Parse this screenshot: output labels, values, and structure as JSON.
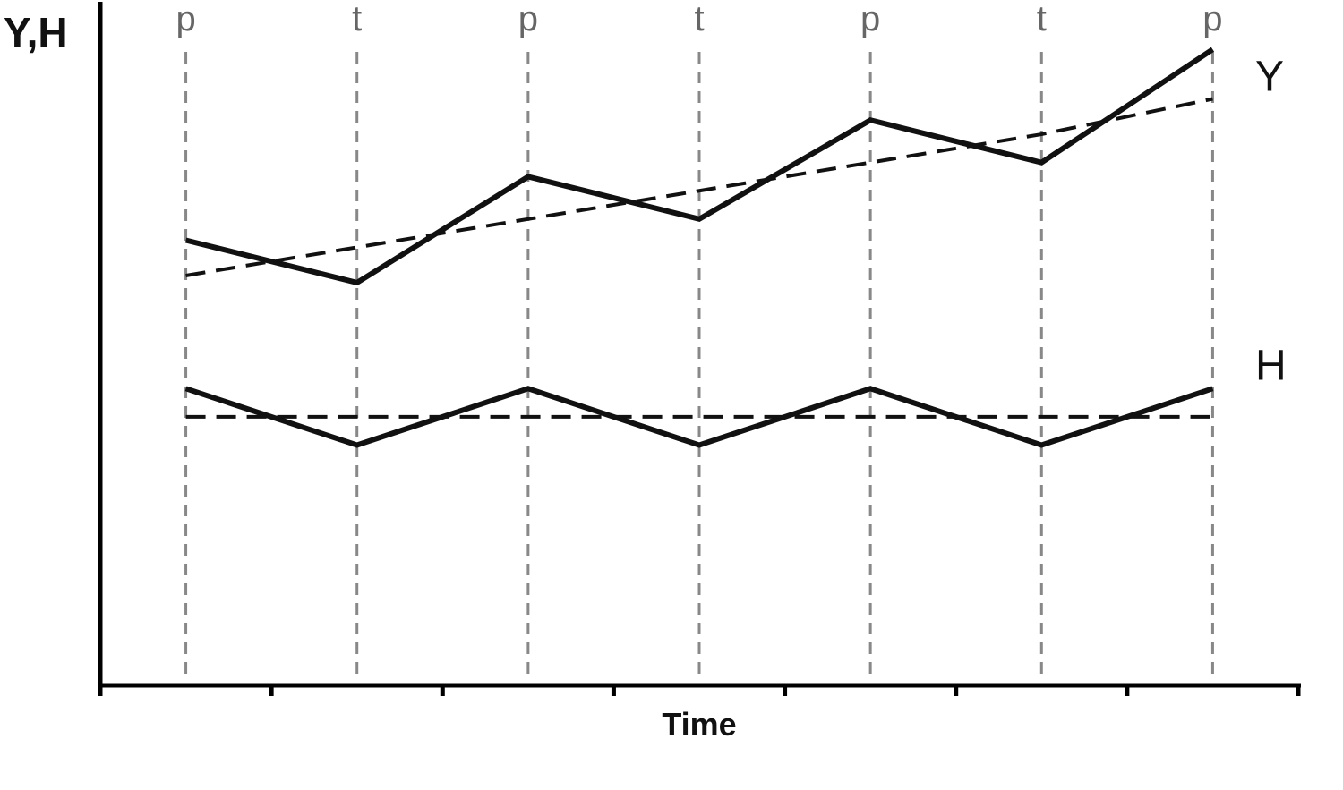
{
  "chart_data": {
    "type": "line",
    "ylabel": "Y,H",
    "xlabel": "Time",
    "x": [
      0,
      1,
      2,
      3,
      4,
      5,
      6
    ],
    "phase_labels": [
      "p",
      "t",
      "p",
      "t",
      "p",
      "t",
      "p"
    ],
    "series": [
      {
        "name": "Y",
        "style": "solid",
        "values": [
          6.1,
          5.5,
          7.0,
          6.4,
          7.8,
          7.2,
          8.8
        ]
      },
      {
        "name": "",
        "style": "dashed",
        "values": [
          5.6,
          6.0,
          6.4,
          6.8,
          7.2,
          7.6,
          8.1
        ]
      },
      {
        "name": "H",
        "style": "solid",
        "values": [
          4.0,
          3.2,
          4.0,
          3.2,
          4.0,
          3.2,
          4.0
        ]
      },
      {
        "name": "",
        "style": "dashed",
        "values": [
          3.6,
          3.6,
          3.6,
          3.6,
          3.6,
          3.6,
          3.6
        ]
      }
    ],
    "xlim": [
      -0.5,
      6.5
    ],
    "ylim": [
      -0.2,
      9.5
    ],
    "x_ticks": [
      -0.5,
      0.5,
      1.5,
      2.5,
      3.5,
      4.5,
      5.5,
      6.5
    ],
    "grid": "vertical dashed lines at each p and t",
    "colors": {
      "line": "#111111",
      "grid": "#888888",
      "axis": "#000000"
    }
  }
}
